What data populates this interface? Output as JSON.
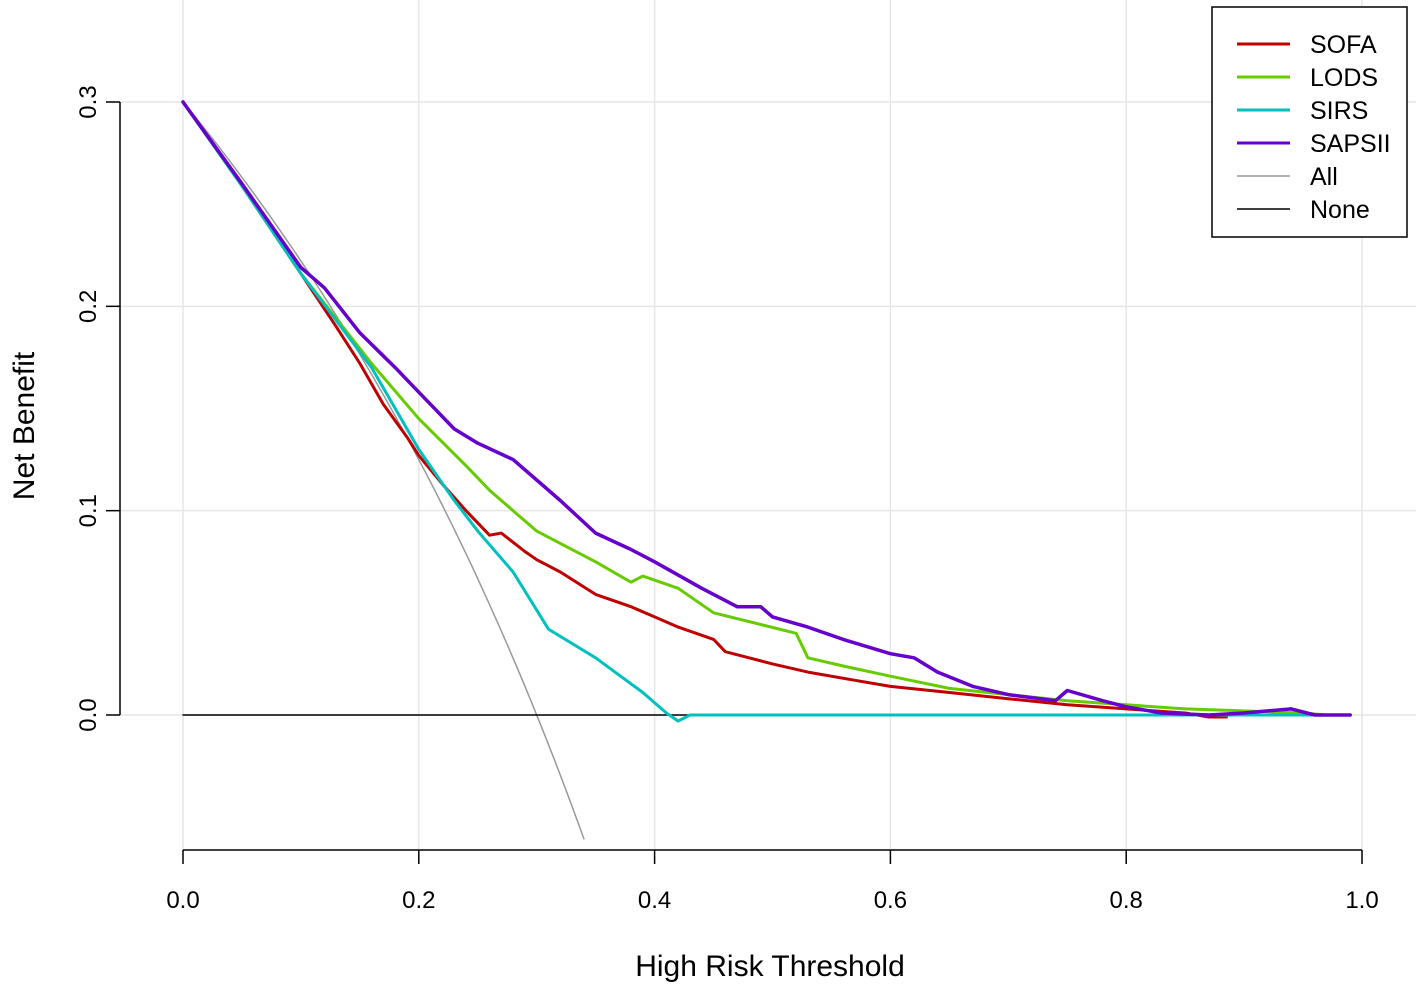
{
  "chart_data": {
    "type": "line",
    "title": "",
    "xlabel": "High Risk Threshold",
    "ylabel": "Net Benefit",
    "xlim": [
      0.0,
      1.0
    ],
    "ylim": [
      -0.066,
      0.33
    ],
    "xticks": [
      0.0,
      0.2,
      0.4,
      0.6,
      0.8,
      1.0
    ],
    "xtick_labels": [
      "0.0",
      "0.2",
      "0.4",
      "0.6",
      "0.8",
      "1.0"
    ],
    "yticks": [
      0.0,
      0.1,
      0.2,
      0.3
    ],
    "ytick_labels": [
      "0.0",
      "0.1",
      "0.2",
      "0.3"
    ],
    "grid": true,
    "legend_position": "top-right",
    "series": [
      {
        "name": "SOFA",
        "color": "#C00000",
        "width": 3,
        "x": [
          0.0,
          0.05,
          0.1,
          0.13,
          0.15,
          0.17,
          0.19,
          0.2,
          0.22,
          0.24,
          0.26,
          0.27,
          0.29,
          0.3,
          0.32,
          0.35,
          0.38,
          0.4,
          0.42,
          0.45,
          0.46,
          0.5,
          0.53,
          0.57,
          0.6,
          0.65,
          0.7,
          0.75,
          0.8,
          0.85,
          0.87,
          0.885
        ],
        "y": [
          0.3,
          0.259,
          0.216,
          0.19,
          0.172,
          0.152,
          0.136,
          0.127,
          0.113,
          0.1,
          0.088,
          0.089,
          0.08,
          0.076,
          0.07,
          0.059,
          0.053,
          0.048,
          0.043,
          0.037,
          0.031,
          0.025,
          0.021,
          0.017,
          0.014,
          0.011,
          0.008,
          0.005,
          0.003,
          0.001,
          -0.001,
          -0.001
        ]
      },
      {
        "name": "LODS",
        "color": "#66CC00",
        "width": 3,
        "x": [
          0.0,
          0.05,
          0.1,
          0.13,
          0.16,
          0.2,
          0.24,
          0.26,
          0.28,
          0.3,
          0.32,
          0.35,
          0.38,
          0.39,
          0.42,
          0.45,
          0.52,
          0.53,
          0.56,
          0.6,
          0.65,
          0.7,
          0.75,
          0.8,
          0.85,
          0.9,
          0.95,
          0.97
        ],
        "y": [
          0.3,
          0.259,
          0.216,
          0.194,
          0.172,
          0.145,
          0.122,
          0.11,
          0.1,
          0.09,
          0.084,
          0.075,
          0.065,
          0.068,
          0.062,
          0.05,
          0.04,
          0.028,
          0.024,
          0.019,
          0.013,
          0.01,
          0.007,
          0.005,
          0.003,
          0.002,
          0.001,
          0.0
        ]
      },
      {
        "name": "SIRS",
        "color": "#00C0C0",
        "width": 3,
        "x": [
          0.0,
          0.05,
          0.1,
          0.13,
          0.16,
          0.2,
          0.23,
          0.25,
          0.28,
          0.31,
          0.35,
          0.39,
          0.41,
          0.42,
          0.43,
          0.5,
          0.6,
          0.7,
          0.8,
          0.9,
          0.97
        ],
        "y": [
          0.3,
          0.259,
          0.216,
          0.193,
          0.17,
          0.13,
          0.105,
          0.09,
          0.07,
          0.042,
          0.028,
          0.011,
          0.001,
          -0.003,
          0.0,
          0.0,
          0.0,
          0.0,
          0.0,
          0.0,
          0.0
        ]
      },
      {
        "name": "SAPSII",
        "color": "#6600CC",
        "width": 3.5,
        "x": [
          0.0,
          0.05,
          0.1,
          0.12,
          0.15,
          0.18,
          0.2,
          0.23,
          0.25,
          0.28,
          0.3,
          0.32,
          0.35,
          0.38,
          0.4,
          0.44,
          0.47,
          0.49,
          0.5,
          0.53,
          0.56,
          0.6,
          0.62,
          0.64,
          0.67,
          0.7,
          0.74,
          0.75,
          0.78,
          0.8,
          0.83,
          0.87,
          0.9,
          0.94,
          0.96,
          0.99
        ],
        "y": [
          0.3,
          0.26,
          0.219,
          0.209,
          0.187,
          0.17,
          0.158,
          0.14,
          0.133,
          0.125,
          0.115,
          0.105,
          0.089,
          0.081,
          0.075,
          0.062,
          0.053,
          0.053,
          0.048,
          0.043,
          0.037,
          0.03,
          0.028,
          0.021,
          0.014,
          0.01,
          0.007,
          0.012,
          0.007,
          0.004,
          0.001,
          0.0,
          0.001,
          0.003,
          0.0,
          0.0
        ]
      },
      {
        "name": "All",
        "color": "#999999",
        "width": 1.5,
        "func": "all",
        "prevalence": 0.3,
        "x_end": 0.342
      },
      {
        "name": "None",
        "color": "#000000",
        "width": 1.5,
        "x": [
          0.0,
          0.99
        ],
        "y": [
          0.0,
          0.0
        ]
      }
    ]
  }
}
